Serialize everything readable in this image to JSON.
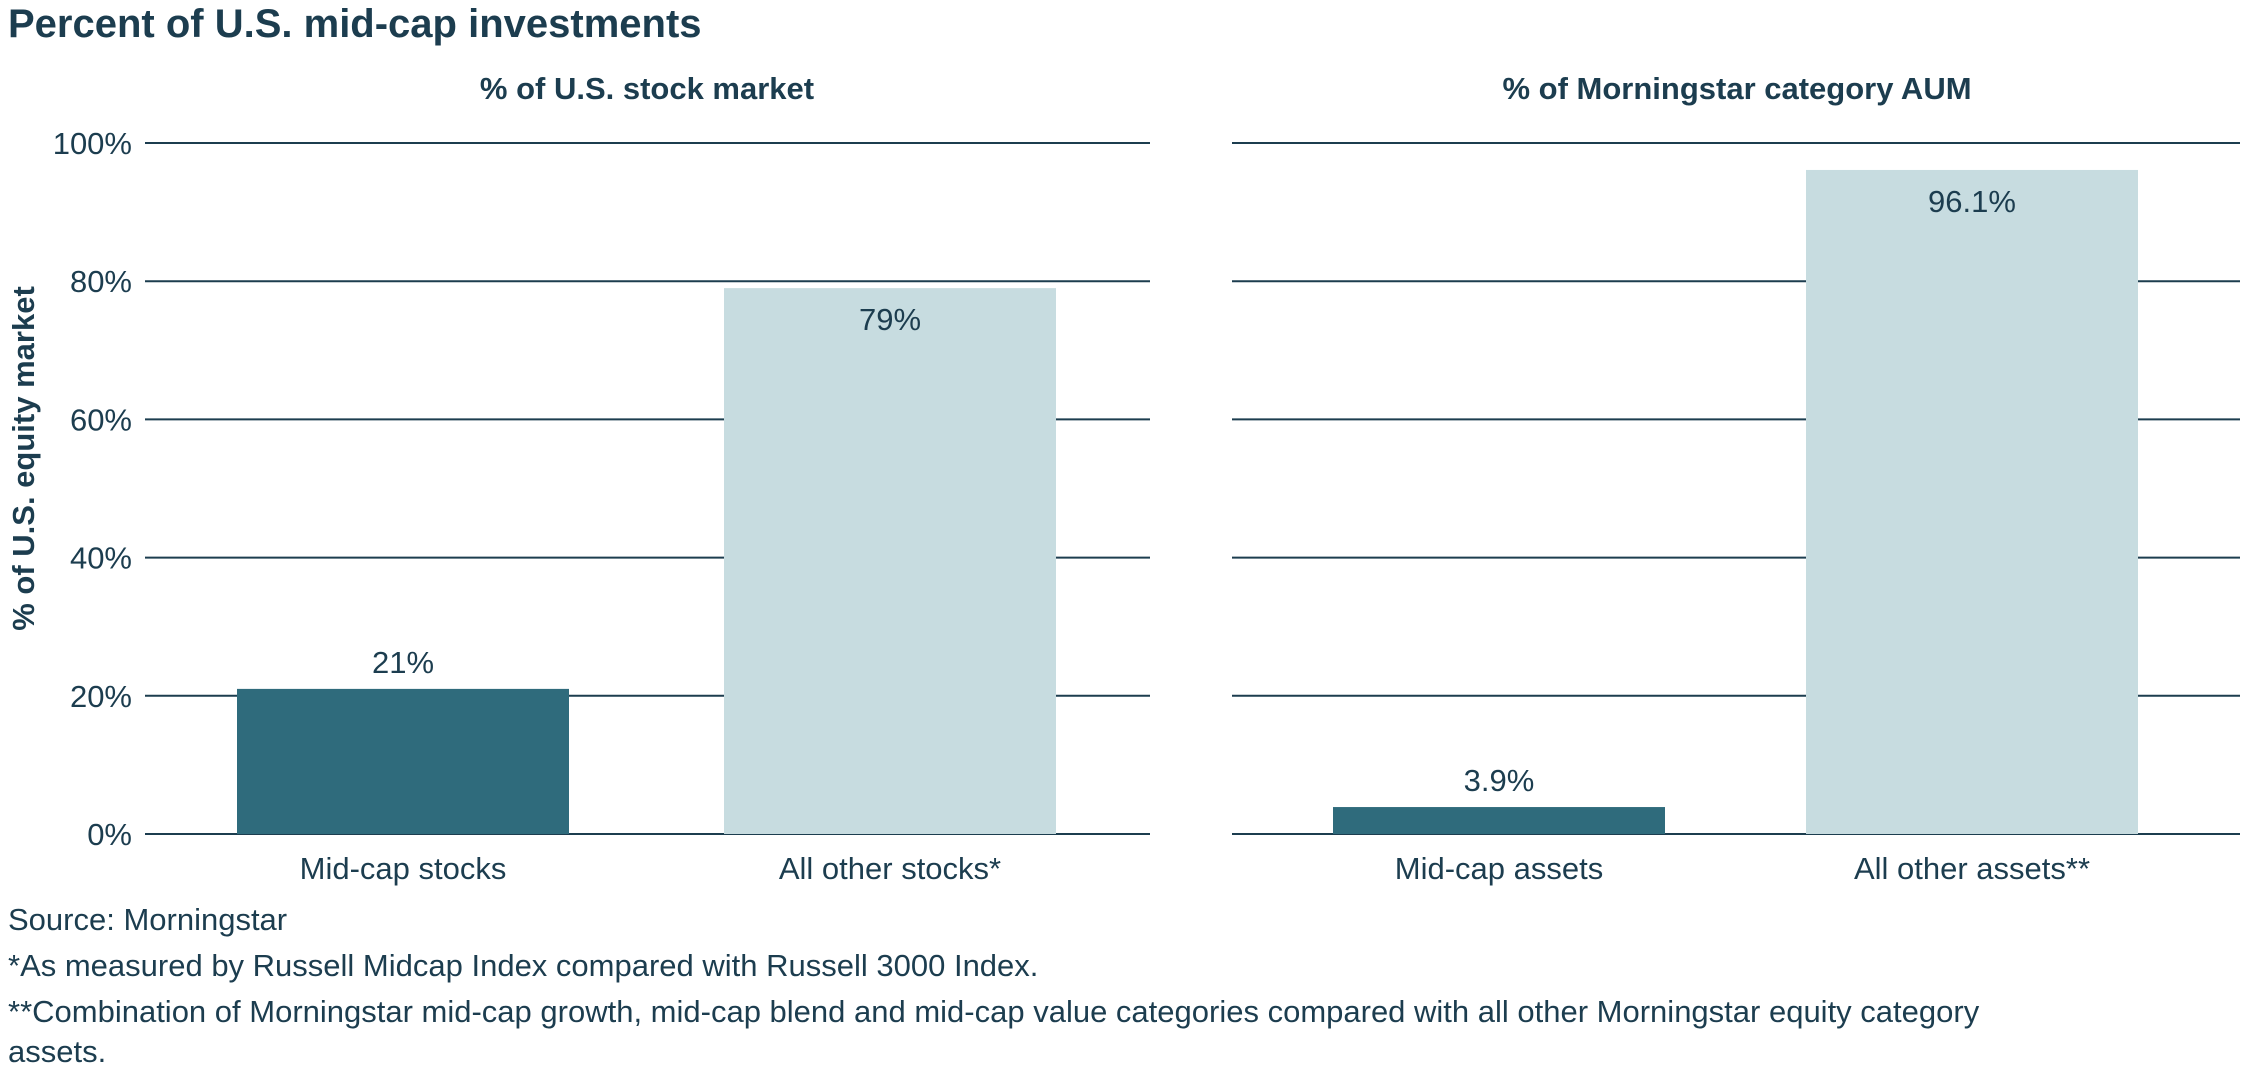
{
  "title": "Percent of U.S. mid-cap investments",
  "colors": {
    "dark_bar": "#2f6b7c",
    "light_bar": "#c7dce0",
    "text": "#1c3d4f",
    "gridline": "#1c3d4f"
  },
  "chart_data": [
    {
      "type": "bar",
      "title": "% of U.S. stock market",
      "ylabel": "% of U.S. equity market",
      "ylim": [
        0,
        100
      ],
      "yticks": [
        "0%",
        "20%",
        "40%",
        "60%",
        "80%",
        "100%"
      ],
      "ytick_values": [
        0,
        20,
        40,
        60,
        80,
        100
      ],
      "grid": true,
      "categories": [
        "Mid-cap stocks",
        "All other stocks*"
      ],
      "values": [
        21,
        79
      ],
      "data_labels": [
        "21%",
        "79%"
      ],
      "bar_colors": [
        "#2f6b7c",
        "#c7dce0"
      ]
    },
    {
      "type": "bar",
      "title": "% of Morningstar category AUM",
      "ylabel": "",
      "ylim": [
        0,
        100
      ],
      "ytick_values": [
        0,
        20,
        40,
        60,
        80,
        100
      ],
      "grid": true,
      "categories": [
        "Mid-cap assets",
        "All other assets**"
      ],
      "values": [
        3.9,
        96.1
      ],
      "data_labels": [
        "3.9%",
        "96.1%"
      ],
      "bar_colors": [
        "#2f6b7c",
        "#c7dce0"
      ]
    }
  ],
  "notes": {
    "source": "Source: Morningstar",
    "footnote_1": "*As measured by Russell Midcap Index compared with Russell 3000 Index.",
    "footnote_2": "**Combination of Morningstar mid-cap growth, mid-cap blend and mid-cap value categories compared with all other Morningstar equity category assets."
  }
}
